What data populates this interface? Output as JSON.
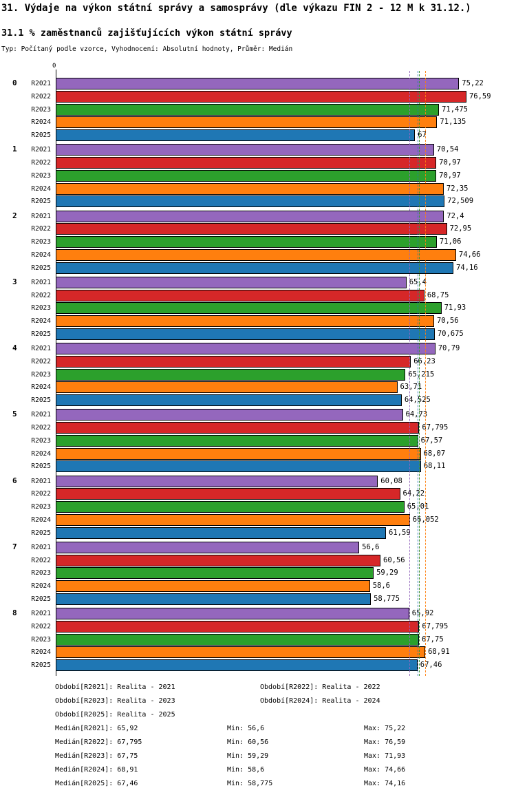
{
  "chart_data": {
    "type": "bar",
    "orientation": "horizontal",
    "title": "31. Výdaje na výkon státní správy a samosprávy (dle výkazu FIN 2 - 12 M k 31.12.)",
    "subtitle": "31.1 % zaměstnanců zajišťujících výkon státní správy",
    "meta_line": "Typ: Počítaný podle vzorce, Vyhodnocení: Absolutní hodnoty, Průměr: Medián",
    "x_origin_label": "0",
    "xlim": [
      0,
      79
    ],
    "grid": false,
    "legend_position": "bottom",
    "series": [
      {
        "name": "R2021",
        "color": "#9467bd",
        "median": 65.92,
        "median_label": "Medián[R2021]: 65,92"
      },
      {
        "name": "R2022",
        "color": "#d62728",
        "median": 67.795,
        "median_label": "Medián[R2022]: 67,795"
      },
      {
        "name": "R2023",
        "color": "#2ca02c",
        "median": 67.75,
        "median_label": "Medián[R2023]: 67,75"
      },
      {
        "name": "R2024",
        "color": "#ff7f0e",
        "median": 68.91,
        "median_label": "Medián[R2024]: 68,91"
      },
      {
        "name": "R2025",
        "color": "#1f77b4",
        "median": 67.46,
        "median_label": "Medián[R2025]: 67,46"
      }
    ],
    "groups": [
      {
        "label": "0",
        "values": [
          75.22,
          76.59,
          71.475,
          71.135,
          67
        ],
        "value_labels": [
          "75,22",
          "76,59",
          "71,475",
          "71,135",
          "67"
        ]
      },
      {
        "label": "1",
        "values": [
          70.54,
          70.97,
          70.97,
          72.35,
          72.509
        ],
        "value_labels": [
          "70,54",
          "70,97",
          "70,97",
          "72,35",
          "72,509"
        ]
      },
      {
        "label": "2",
        "values": [
          72.4,
          72.95,
          71.06,
          74.66,
          74.16
        ],
        "value_labels": [
          "72,4",
          "72,95",
          "71,06",
          "74,66",
          "74,16"
        ]
      },
      {
        "label": "3",
        "values": [
          65.4,
          68.75,
          71.93,
          70.56,
          70.675
        ],
        "value_labels": [
          "65,4",
          "68,75",
          "71,93",
          "70,56",
          "70,675"
        ]
      },
      {
        "label": "4",
        "values": [
          70.79,
          66.23,
          65.215,
          63.71,
          64.525
        ],
        "value_labels": [
          "70,79",
          "66,23",
          "65,215",
          "63,71",
          "64,525"
        ]
      },
      {
        "label": "5",
        "values": [
          64.73,
          67.795,
          67.57,
          68.07,
          68.11
        ],
        "value_labels": [
          "64,73",
          "67,795",
          "67,57",
          "68,07",
          "68,11"
        ]
      },
      {
        "label": "6",
        "values": [
          60.08,
          64.22,
          65.01,
          66.052,
          61.59
        ],
        "value_labels": [
          "60,08",
          "64,22",
          "65,01",
          "66,052",
          "61,59"
        ]
      },
      {
        "label": "7",
        "values": [
          56.6,
          60.56,
          59.29,
          58.6,
          58.775
        ],
        "value_labels": [
          "56,6",
          "60,56",
          "59,29",
          "58,6",
          "58,775"
        ]
      },
      {
        "label": "8",
        "values": [
          65.92,
          67.795,
          67.75,
          68.91,
          67.46
        ],
        "value_labels": [
          "65,92",
          "67,795",
          "67,75",
          "68,91",
          "67,46"
        ]
      }
    ],
    "legend": [
      {
        "text": "Období[R2021]: Realita - 2021"
      },
      {
        "text": "Období[R2022]: Realita - 2022"
      },
      {
        "text": "Období[R2023]: Realita - 2023"
      },
      {
        "text": "Období[R2024]: Realita - 2024"
      },
      {
        "text": "Období[R2025]: Realita - 2025"
      }
    ],
    "stats": [
      {
        "median": "Medián[R2021]: 65,92",
        "min": "Min: 56,6",
        "max": "Max: 75,22"
      },
      {
        "median": "Medián[R2022]: 67,795",
        "min": "Min: 60,56",
        "max": "Max: 76,59"
      },
      {
        "median": "Medián[R2023]: 67,75",
        "min": "Min: 59,29",
        "max": "Max: 71,93"
      },
      {
        "median": "Medián[R2024]: 68,91",
        "min": "Min: 58,6",
        "max": "Max: 74,66"
      },
      {
        "median": "Medián[R2025]: 67,46",
        "min": "Min: 58,775",
        "max": "Max: 74,16"
      }
    ]
  }
}
